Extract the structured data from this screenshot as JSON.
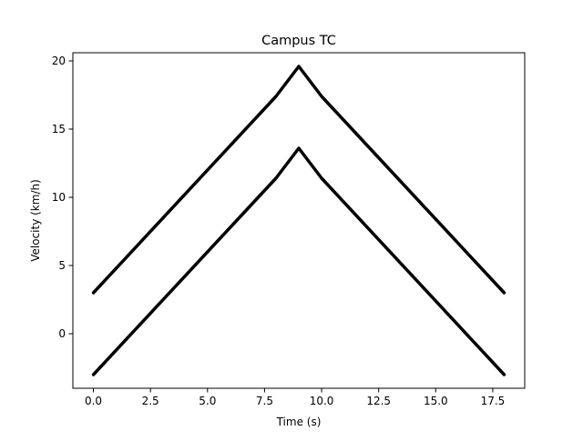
{
  "chart_data": {
    "type": "line",
    "title": "Campus TC",
    "xlabel": "Time (s)",
    "ylabel": "Velocity (km/h)",
    "xlim": [
      -0.9,
      18.9
    ],
    "ylim": [
      -4.0,
      20.6
    ],
    "xticks": [
      0.0,
      2.5,
      5.0,
      7.5,
      10.0,
      12.5,
      15.0,
      17.5
    ],
    "xtick_labels": [
      "0.0",
      "2.5",
      "5.0",
      "7.5",
      "10.0",
      "12.5",
      "15.0",
      "17.5"
    ],
    "yticks": [
      0,
      5,
      10,
      15,
      20
    ],
    "ytick_labels": [
      "0",
      "5",
      "10",
      "15",
      "20"
    ],
    "grid": false,
    "line_color": "#000000",
    "series": [
      {
        "x": [
          0,
          8,
          9,
          10,
          18
        ],
        "y": [
          3.0,
          17.4,
          19.6,
          17.4,
          3.0
        ]
      },
      {
        "x": [
          0,
          8,
          9,
          10,
          18
        ],
        "y": [
          -3.0,
          11.4,
          13.6,
          11.4,
          -3.0
        ]
      }
    ]
  }
}
